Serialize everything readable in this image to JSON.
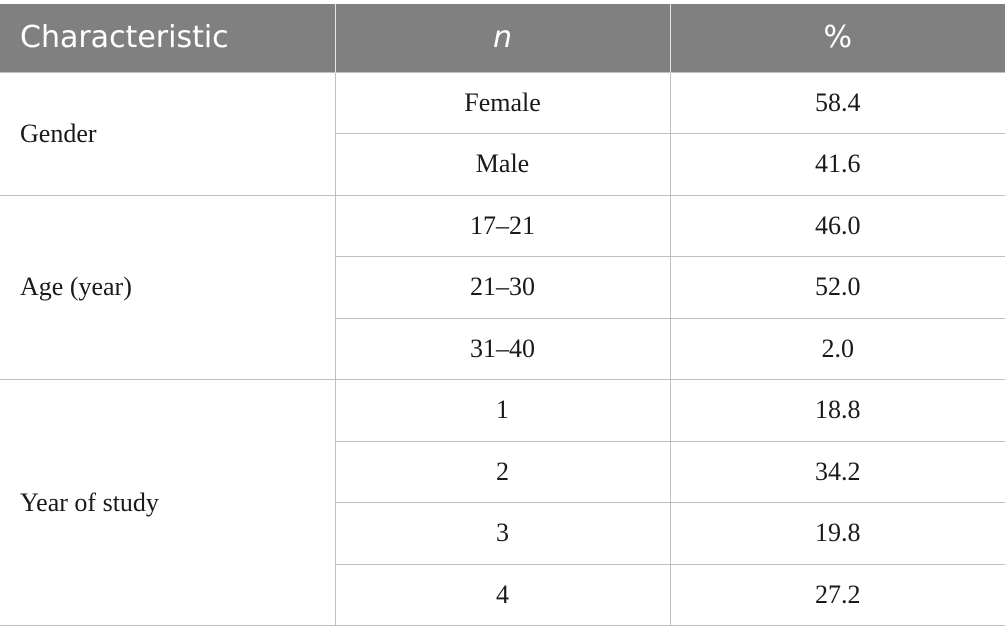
{
  "table": {
    "headers": [
      "Characteristic",
      "n",
      "%"
    ],
    "groups": [
      {
        "label": "Gender",
        "rows": [
          {
            "category": "Female",
            "pct": "58.4"
          },
          {
            "category": "Male",
            "pct": "41.6"
          }
        ]
      },
      {
        "label": "Age (year)",
        "rows": [
          {
            "category": "17–21",
            "pct": "46.0"
          },
          {
            "category": "21–30",
            "pct": "52.0"
          },
          {
            "category": "31–40",
            "pct": "2.0"
          }
        ]
      },
      {
        "label": "Year of study",
        "rows": [
          {
            "category": "1",
            "pct": "18.8"
          },
          {
            "category": "2",
            "pct": "34.2"
          },
          {
            "category": "3",
            "pct": "19.8"
          },
          {
            "category": "4",
            "pct": "27.2"
          }
        ]
      }
    ]
  }
}
